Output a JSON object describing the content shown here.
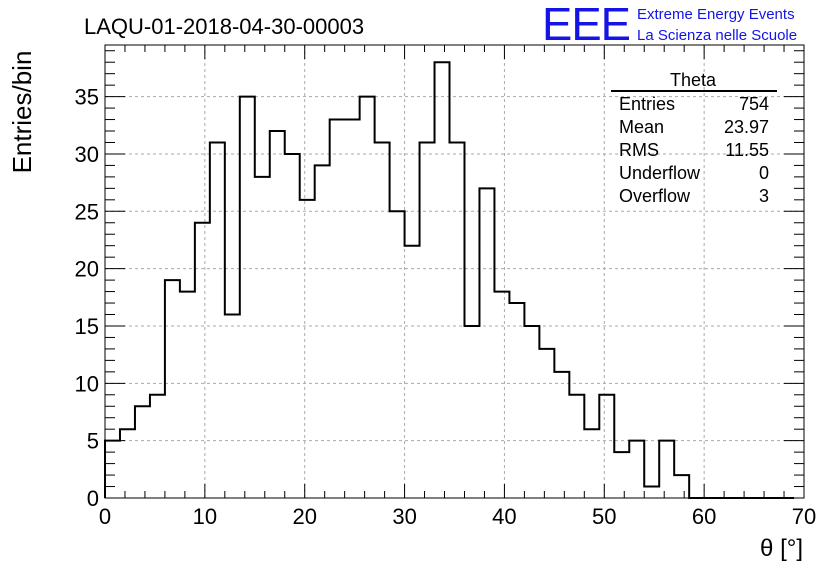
{
  "header": {
    "run_title": "LAQU-01-2018-04-30-00003",
    "logo_text": "EEE",
    "logo_line1": "Extreme Energy Events",
    "logo_line2": "La Scienza nelle Scuole"
  },
  "stats_box": {
    "title": "Theta",
    "rows": [
      {
        "label": "Entries",
        "value": "754"
      },
      {
        "label": "Mean",
        "value": "23.97"
      },
      {
        "label": "RMS",
        "value": "11.55"
      },
      {
        "label": "Underflow",
        "value": "0"
      },
      {
        "label": "Overflow",
        "value": "3"
      }
    ]
  },
  "chart_data": {
    "type": "bar",
    "histogram": true,
    "bin_width": 1.5,
    "x_start": 0,
    "values": [
      5,
      6,
      8,
      9,
      19,
      18,
      24,
      31,
      16,
      35,
      28,
      32,
      30,
      26,
      29,
      33,
      33,
      35,
      31,
      25,
      22,
      31,
      38,
      31,
      15,
      27,
      18,
      17,
      15,
      13,
      11,
      9,
      6,
      9,
      4,
      5,
      1,
      5,
      2,
      0,
      0,
      0,
      0,
      0,
      0,
      0
    ],
    "xlabel": "θ [°]",
    "ylabel": "Entries/bin",
    "xlim": [
      0,
      70
    ],
    "ylim": [
      0,
      39.5
    ],
    "xticks": [
      "0",
      "10",
      "20",
      "30",
      "40",
      "50",
      "60",
      "70"
    ],
    "yticks": [
      "0",
      "5",
      "10",
      "15",
      "20",
      "25",
      "30",
      "35"
    ],
    "grid": true,
    "line_color": "#000000"
  }
}
